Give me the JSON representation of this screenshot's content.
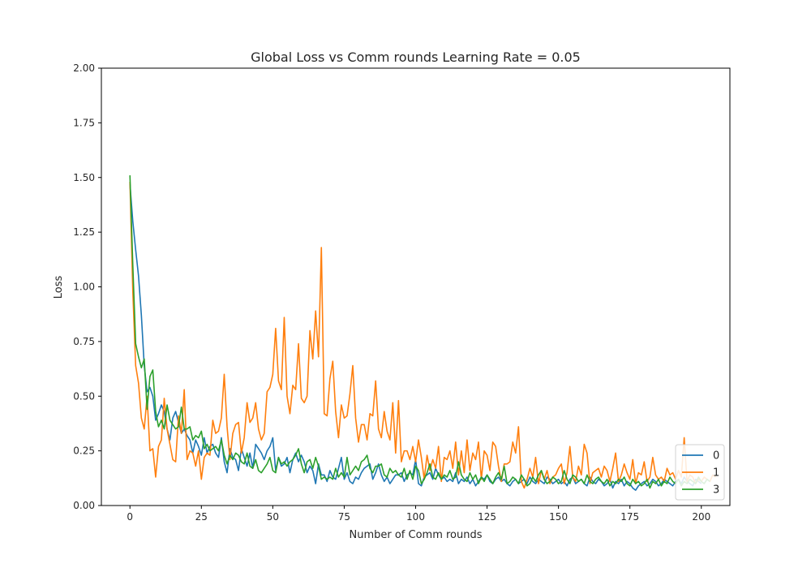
{
  "chart_data": {
    "type": "line",
    "title": "Global Loss vs Comm rounds Learning Rate = 0.05",
    "xlabel": "Number of Comm rounds",
    "ylabel": "Loss",
    "xlim": [
      -10,
      210
    ],
    "ylim": [
      0,
      2
    ],
    "x_ticks": [
      0,
      25,
      50,
      75,
      100,
      125,
      150,
      175,
      200
    ],
    "y_ticks": [
      "0.00",
      "0.25",
      "0.50",
      "0.75",
      "1.00",
      "1.25",
      "1.50",
      "1.75",
      "2.00"
    ],
    "grid": false,
    "legend_position": "lower-right",
    "x_start": 0,
    "x_step": 1,
    "series": [
      {
        "name": "0",
        "color": "#1f77b4",
        "values": [
          1.47,
          1.3,
          1.17,
          1.05,
          0.87,
          0.64,
          0.52,
          0.54,
          0.5,
          0.39,
          0.42,
          0.46,
          0.43,
          0.35,
          0.3,
          0.4,
          0.43,
          0.38,
          0.33,
          0.35,
          0.32,
          0.3,
          0.24,
          0.3,
          0.27,
          0.23,
          0.31,
          0.24,
          0.27,
          0.28,
          0.24,
          0.22,
          0.31,
          0.2,
          0.15,
          0.26,
          0.22,
          0.21,
          0.16,
          0.26,
          0.22,
          0.18,
          0.24,
          0.17,
          0.28,
          0.26,
          0.24,
          0.21,
          0.25,
          0.27,
          0.31,
          0.16,
          0.22,
          0.18,
          0.19,
          0.22,
          0.15,
          0.21,
          0.24,
          0.2,
          0.23,
          0.2,
          0.15,
          0.18,
          0.16,
          0.1,
          0.19,
          0.14,
          0.14,
          0.11,
          0.16,
          0.13,
          0.12,
          0.17,
          0.22,
          0.12,
          0.15,
          0.11,
          0.1,
          0.13,
          0.12,
          0.15,
          0.17,
          0.18,
          0.19,
          0.12,
          0.15,
          0.19,
          0.14,
          0.11,
          0.13,
          0.1,
          0.12,
          0.14,
          0.14,
          0.15,
          0.11,
          0.14,
          0.15,
          0.14,
          0.21,
          0.1,
          0.09,
          0.13,
          0.14,
          0.15,
          0.12,
          0.17,
          0.14,
          0.12,
          0.13,
          0.11,
          0.12,
          0.11,
          0.15,
          0.1,
          0.12,
          0.11,
          0.13,
          0.1,
          0.12,
          0.09,
          0.11,
          0.13,
          0.12,
          0.14,
          0.11,
          0.1,
          0.12,
          0.13,
          0.11,
          0.12,
          0.1,
          0.09,
          0.11,
          0.12,
          0.1,
          0.11,
          0.12,
          0.1,
          0.13,
          0.11,
          0.1,
          0.12,
          0.11,
          0.1,
          0.13,
          0.12,
          0.1,
          0.11,
          0.12,
          0.1,
          0.11,
          0.09,
          0.12,
          0.13,
          0.1,
          0.11,
          0.12,
          0.1,
          0.09,
          0.13,
          0.11,
          0.1,
          0.12,
          0.11,
          0.09,
          0.1,
          0.12,
          0.08,
          0.11,
          0.1,
          0.12,
          0.09,
          0.11,
          0.1,
          0.08,
          0.07,
          0.09,
          0.1,
          0.11,
          0.09,
          0.1,
          0.12,
          0.11,
          0.09,
          0.1,
          0.12,
          0.11,
          0.1,
          0.09,
          0.11,
          0.12,
          0.1,
          0.13,
          0.11,
          0.1,
          0.09,
          0.12,
          0.11,
          0.1
        ]
      },
      {
        "name": "1",
        "color": "#ff7f0e",
        "values": [
          1.48,
          0.98,
          0.64,
          0.56,
          0.4,
          0.35,
          0.5,
          0.25,
          0.26,
          0.13,
          0.27,
          0.3,
          0.49,
          0.35,
          0.28,
          0.21,
          0.2,
          0.41,
          0.33,
          0.53,
          0.21,
          0.25,
          0.24,
          0.18,
          0.25,
          0.12,
          0.22,
          0.24,
          0.23,
          0.39,
          0.33,
          0.34,
          0.4,
          0.6,
          0.36,
          0.21,
          0.33,
          0.37,
          0.38,
          0.24,
          0.31,
          0.47,
          0.38,
          0.4,
          0.47,
          0.35,
          0.3,
          0.33,
          0.52,
          0.54,
          0.6,
          0.81,
          0.57,
          0.53,
          0.86,
          0.5,
          0.42,
          0.55,
          0.53,
          0.74,
          0.49,
          0.47,
          0.5,
          0.8,
          0.67,
          0.89,
          0.68,
          1.18,
          0.42,
          0.41,
          0.58,
          0.66,
          0.43,
          0.31,
          0.46,
          0.4,
          0.41,
          0.51,
          0.64,
          0.4,
          0.29,
          0.37,
          0.37,
          0.3,
          0.42,
          0.41,
          0.57,
          0.35,
          0.31,
          0.43,
          0.34,
          0.3,
          0.47,
          0.24,
          0.48,
          0.2,
          0.25,
          0.25,
          0.21,
          0.27,
          0.2,
          0.3,
          0.22,
          0.12,
          0.23,
          0.16,
          0.21,
          0.17,
          0.27,
          0.11,
          0.22,
          0.21,
          0.25,
          0.17,
          0.29,
          0.14,
          0.25,
          0.15,
          0.3,
          0.16,
          0.24,
          0.21,
          0.29,
          0.12,
          0.25,
          0.23,
          0.16,
          0.29,
          0.27,
          0.18,
          0.11,
          0.19,
          0.19,
          0.2,
          0.29,
          0.24,
          0.36,
          0.11,
          0.08,
          0.12,
          0.17,
          0.13,
          0.22,
          0.1,
          0.16,
          0.12,
          0.16,
          0.1,
          0.13,
          0.14,
          0.17,
          0.19,
          0.1,
          0.15,
          0.27,
          0.13,
          0.11,
          0.18,
          0.14,
          0.28,
          0.24,
          0.1,
          0.15,
          0.16,
          0.17,
          0.13,
          0.18,
          0.16,
          0.11,
          0.17,
          0.24,
          0.11,
          0.14,
          0.19,
          0.15,
          0.12,
          0.21,
          0.1,
          0.15,
          0.14,
          0.2,
          0.11,
          0.13,
          0.22,
          0.14,
          0.12,
          0.13,
          0.11,
          0.17,
          0.14,
          0.15,
          0.12,
          0.16,
          0.13,
          0.31,
          0.11,
          0.14,
          0.13,
          0.1,
          0.12,
          0.11,
          0.13,
          0.12,
          0.11,
          0.14,
          0.13
        ]
      },
      {
        "name": "3",
        "color": "#2ca02c",
        "values": [
          1.51,
          1.1,
          0.74,
          0.68,
          0.63,
          0.67,
          0.44,
          0.59,
          0.62,
          0.43,
          0.36,
          0.39,
          0.35,
          0.46,
          0.39,
          0.37,
          0.35,
          0.36,
          0.45,
          0.35,
          0.35,
          0.36,
          0.3,
          0.32,
          0.31,
          0.34,
          0.26,
          0.28,
          0.25,
          0.26,
          0.27,
          0.25,
          0.3,
          0.23,
          0.19,
          0.23,
          0.21,
          0.24,
          0.23,
          0.2,
          0.19,
          0.24,
          0.18,
          0.17,
          0.21,
          0.16,
          0.15,
          0.17,
          0.19,
          0.22,
          0.16,
          0.15,
          0.22,
          0.19,
          0.2,
          0.18,
          0.2,
          0.21,
          0.23,
          0.26,
          0.19,
          0.15,
          0.2,
          0.21,
          0.17,
          0.22,
          0.18,
          0.12,
          0.13,
          0.12,
          0.13,
          0.12,
          0.17,
          0.13,
          0.15,
          0.13,
          0.22,
          0.14,
          0.16,
          0.18,
          0.16,
          0.2,
          0.21,
          0.23,
          0.17,
          0.15,
          0.18,
          0.18,
          0.19,
          0.14,
          0.13,
          0.17,
          0.15,
          0.16,
          0.14,
          0.13,
          0.17,
          0.12,
          0.16,
          0.12,
          0.18,
          0.16,
          0.1,
          0.12,
          0.15,
          0.19,
          0.13,
          0.12,
          0.15,
          0.12,
          0.14,
          0.13,
          0.16,
          0.12,
          0.13,
          0.2,
          0.14,
          0.12,
          0.11,
          0.15,
          0.12,
          0.14,
          0.1,
          0.13,
          0.11,
          0.14,
          0.12,
          0.1,
          0.13,
          0.15,
          0.12,
          0.18,
          0.1,
          0.11,
          0.13,
          0.12,
          0.1,
          0.14,
          0.12,
          0.09,
          0.1,
          0.13,
          0.11,
          0.14,
          0.16,
          0.12,
          0.1,
          0.11,
          0.13,
          0.12,
          0.1,
          0.11,
          0.16,
          0.12,
          0.1,
          0.14,
          0.13,
          0.11,
          0.12,
          0.1,
          0.14,
          0.11,
          0.1,
          0.12,
          0.13,
          0.11,
          0.1,
          0.12,
          0.09,
          0.11,
          0.1,
          0.12,
          0.11,
          0.13,
          0.1,
          0.09,
          0.12,
          0.1,
          0.11,
          0.09,
          0.1,
          0.12,
          0.08,
          0.11,
          0.1,
          0.12,
          0.09,
          0.11,
          0.1,
          0.13,
          0.11,
          0.1,
          0.12,
          0.09,
          0.11,
          0.1,
          0.12,
          0.11,
          0.1,
          0.13,
          0.11,
          0.1,
          0.12,
          0.11
        ]
      }
    ]
  }
}
